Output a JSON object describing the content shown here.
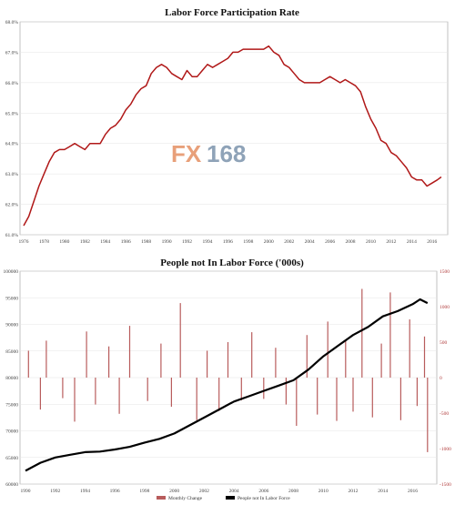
{
  "watermark": {
    "prefix": "FX",
    "suffix": "168",
    "prefix_color": "#e8a07a",
    "suffix_color": "#8fa3b8"
  },
  "chart_data": [
    {
      "type": "line",
      "title": "Labor Force Participation Rate",
      "color": "#b01818",
      "xlim": [
        1976,
        2017
      ],
      "ylim": [
        61.0,
        68.0
      ],
      "yticks": [
        "61.0%",
        "62.0%",
        "63.0%",
        "64.0%",
        "65.0%",
        "66.0%",
        "67.0%",
        "68.0%"
      ],
      "ytick_values": [
        61,
        62,
        63,
        64,
        65,
        66,
        67,
        68
      ],
      "xticks": [
        "1976",
        "1978",
        "1980",
        "1982",
        "1984",
        "1986",
        "1988",
        "1990",
        "1992",
        "1994",
        "1996",
        "1998",
        "2000",
        "2002",
        "2004",
        "2006",
        "2008",
        "2010",
        "2012",
        "2014",
        "2016"
      ],
      "x": [
        1976.0,
        1976.5,
        1977.0,
        1977.5,
        1978.0,
        1978.5,
        1979.0,
        1979.5,
        1980.0,
        1980.5,
        1981.0,
        1981.5,
        1982.0,
        1982.5,
        1983.0,
        1983.5,
        1984.0,
        1984.5,
        1985.0,
        1985.5,
        1986.0,
        1986.5,
        1987.0,
        1987.5,
        1988.0,
        1988.5,
        1989.0,
        1989.5,
        1990.0,
        1990.5,
        1991.0,
        1991.5,
        1992.0,
        1992.5,
        1993.0,
        1993.5,
        1994.0,
        1994.5,
        1995.0,
        1995.5,
        1996.0,
        1996.5,
        1997.0,
        1997.5,
        1998.0,
        1998.5,
        1999.0,
        1999.5,
        2000.0,
        2000.5,
        2001.0,
        2001.5,
        2002.0,
        2002.5,
        2003.0,
        2003.5,
        2004.0,
        2004.5,
        2005.0,
        2005.5,
        2006.0,
        2006.5,
        2007.0,
        2007.5,
        2008.0,
        2008.5,
        2009.0,
        2009.5,
        2010.0,
        2010.5,
        2011.0,
        2011.5,
        2012.0,
        2012.5,
        2013.0,
        2013.5,
        2014.0,
        2014.5,
        2015.0,
        2015.5,
        2016.0,
        2016.5,
        2016.9
      ],
      "values": [
        61.3,
        61.6,
        62.1,
        62.6,
        63.0,
        63.4,
        63.7,
        63.8,
        63.8,
        63.9,
        64.0,
        63.9,
        63.8,
        64.0,
        64.0,
        64.0,
        64.3,
        64.5,
        64.6,
        64.8,
        65.1,
        65.3,
        65.6,
        65.8,
        65.9,
        66.3,
        66.5,
        66.6,
        66.5,
        66.3,
        66.2,
        66.1,
        66.4,
        66.2,
        66.2,
        66.4,
        66.6,
        66.5,
        66.6,
        66.7,
        66.8,
        67.0,
        67.0,
        67.1,
        67.1,
        67.1,
        67.1,
        67.1,
        67.2,
        67.0,
        66.9,
        66.6,
        66.5,
        66.3,
        66.1,
        66.0,
        66.0,
        66.0,
        66.0,
        66.1,
        66.2,
        66.1,
        66.0,
        66.1,
        66.0,
        65.9,
        65.7,
        65.2,
        64.8,
        64.5,
        64.1,
        64.0,
        63.7,
        63.6,
        63.4,
        63.2,
        62.9,
        62.8,
        62.8,
        62.6,
        62.7,
        62.8,
        62.9
      ]
    },
    {
      "type": "bar+line",
      "title": "People not In Labor Force ('000s)",
      "xlim": [
        1990,
        2017.5
      ],
      "xticks": [
        "1990",
        "1992",
        "1994",
        "1996",
        "1998",
        "2000",
        "2002",
        "2004",
        "2006",
        "2008",
        "2010",
        "2012",
        "2014",
        "2016"
      ],
      "left_axis": {
        "ylim": [
          60000,
          100000
        ],
        "ticks": [
          "60000",
          "65000",
          "70000",
          "75000",
          "80000",
          "85000",
          "90000",
          "95000",
          "100000"
        ],
        "tick_values": [
          60000,
          65000,
          70000,
          75000,
          80000,
          85000,
          90000,
          95000,
          100000
        ]
      },
      "right_axis": {
        "ylim": [
          -1500,
          1500
        ],
        "ticks": [
          "-1500",
          "-1000",
          "-500",
          "0",
          "500",
          "1000",
          "1500"
        ],
        "tick_values": [
          -1500,
          -1000,
          -500,
          0,
          500,
          1000,
          1500
        ]
      },
      "legend": {
        "placement": "bottom",
        "entries": [
          "Monthly Change",
          "People not In Labor Force"
        ]
      },
      "series": [
        {
          "name": "Monthly Change",
          "axis": "right",
          "kind": "bar",
          "color": "#b85c5c",
          "x": [
            1990.2,
            1991.0,
            1991.4,
            1992.5,
            1993.3,
            1994.1,
            1994.7,
            1995.6,
            1996.3,
            1997.0,
            1998.2,
            1999.1,
            1999.8,
            2000.4,
            2001.5,
            2002.2,
            2003.0,
            2003.6,
            2004.5,
            2005.2,
            2006.0,
            2006.8,
            2007.5,
            2008.2,
            2008.9,
            2009.6,
            2010.3,
            2010.9,
            2011.5,
            2012.0,
            2012.6,
            2013.3,
            2013.9,
            2014.5,
            2015.2,
            2015.8,
            2016.3,
            2016.8,
            2017.0
          ],
          "values": [
            380,
            -450,
            520,
            -290,
            -620,
            650,
            -380,
            440,
            -510,
            730,
            -330,
            480,
            -410,
            1050,
            -600,
            380,
            -470,
            500,
            -320,
            640,
            -300,
            420,
            -380,
            -680,
            600,
            -520,
            790,
            -610,
            530,
            -480,
            1250,
            -560,
            480,
            1200,
            -600,
            820,
            -400,
            580,
            -1050
          ]
        },
        {
          "name": "People not In Labor Force",
          "axis": "left",
          "kind": "line",
          "color": "#000000",
          "x": [
            1990.0,
            1991.0,
            1992.0,
            1993.0,
            1994.0,
            1995.0,
            1996.0,
            1997.0,
            1998.0,
            1999.0,
            2000.0,
            2001.0,
            2002.0,
            2003.0,
            2004.0,
            2005.0,
            2006.0,
            2007.0,
            2008.0,
            2009.0,
            2010.0,
            2011.0,
            2012.0,
            2013.0,
            2014.0,
            2015.0,
            2016.0,
            2016.5,
            2017.0
          ],
          "values": [
            62500,
            64000,
            65000,
            65500,
            66000,
            66100,
            66500,
            67000,
            67800,
            68500,
            69500,
            71000,
            72500,
            74000,
            75500,
            76500,
            77500,
            78500,
            79500,
            81500,
            84000,
            86000,
            88000,
            89500,
            91500,
            92500,
            93800,
            94700,
            94000
          ]
        }
      ]
    }
  ]
}
